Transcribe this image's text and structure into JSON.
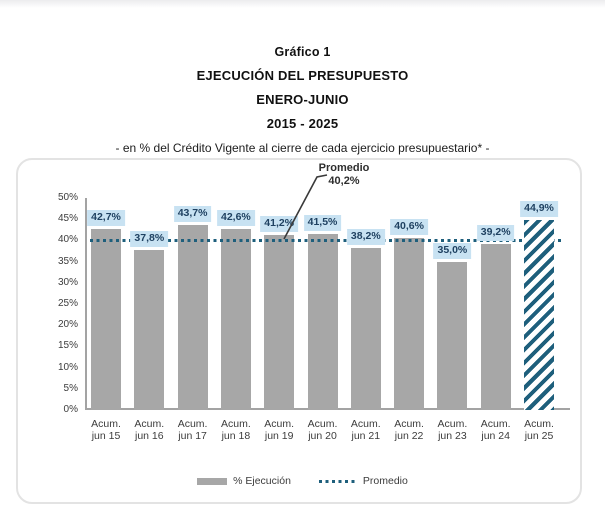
{
  "chart_data": {
    "type": "bar",
    "title_lines": [
      "Gráfico 1",
      "EJECUCIÓN DEL PRESUPUESTO",
      "ENERO-JUNIO",
      "2015 - 2025"
    ],
    "subtitle": "- en % del Crédito Vigente al cierre de cada ejercicio presupuestario* -",
    "categories": [
      [
        "Acum.",
        "jun 15"
      ],
      [
        "Acum.",
        "jun 16"
      ],
      [
        "Acum.",
        "jun 17"
      ],
      [
        "Acum.",
        "jun 18"
      ],
      [
        "Acum.",
        "jun 19"
      ],
      [
        "Acum.",
        "jun 20"
      ],
      [
        "Acum.",
        "jun 21"
      ],
      [
        "Acum.",
        "jun 22"
      ],
      [
        "Acum.",
        "jun 23"
      ],
      [
        "Acum.",
        "jun 24"
      ],
      [
        "Acum.",
        "jun 25"
      ]
    ],
    "values": [
      42.7,
      37.8,
      43.7,
      42.6,
      41.2,
      41.5,
      38.2,
      40.6,
      35.0,
      39.2,
      44.9
    ],
    "value_labels": [
      "42,7%",
      "37,8%",
      "43,7%",
      "42,6%",
      "41,2%",
      "41,5%",
      "38,2%",
      "40,6%",
      "35,0%",
      "39,2%",
      "44,9%"
    ],
    "highlight_index": 10,
    "mean": 40.2,
    "annotation": {
      "line1": "Promedio",
      "line2": "40,2%"
    },
    "ylim": [
      0,
      50
    ],
    "ytick_step": 5,
    "ytick_labels": [
      "0%",
      "5%",
      "10%",
      "15%",
      "20%",
      "25%",
      "30%",
      "35%",
      "40%",
      "45%",
      "50%"
    ],
    "grid": false,
    "legend_position": "bottom",
    "legend": [
      {
        "label": "% Ejecución",
        "swatch": "bar"
      },
      {
        "label": "Promedio",
        "swatch": "dotted-line"
      }
    ],
    "colors": {
      "bar": "#a7a7a7",
      "highlight_teal": "#1e5f7c",
      "label_bg": "#c8e2f2",
      "label_text": "#1f4161",
      "axis": "#a3a3a3",
      "text": "#3c3c3c"
    }
  }
}
